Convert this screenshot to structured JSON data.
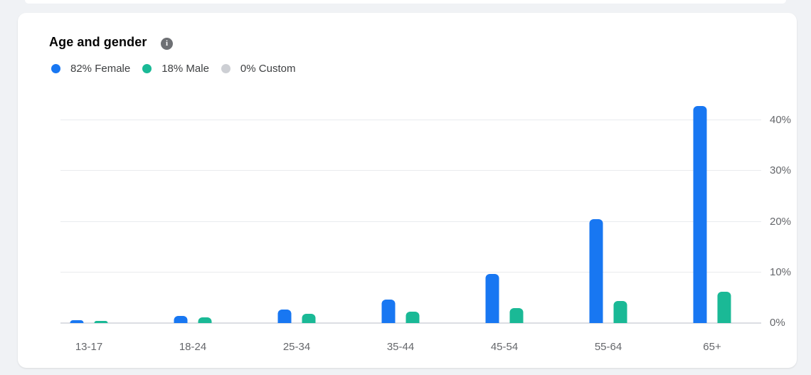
{
  "card": {
    "title": "Age and gender"
  },
  "legend": {
    "items": [
      {
        "label": "82% Female",
        "color": "#1877F2"
      },
      {
        "label": "18% Male",
        "color": "#1AB996"
      },
      {
        "label": "0% Custom",
        "color": "#CDCFD4"
      }
    ]
  },
  "chart_data": {
    "type": "bar",
    "title": "Age and gender",
    "categories": [
      "13-17",
      "18-24",
      "25-34",
      "35-44",
      "45-54",
      "55-64",
      "65+"
    ],
    "series": [
      {
        "name": "Female",
        "color": "#1877F2",
        "values": [
          0.5,
          1.4,
          2.7,
          4.6,
          9.7,
          20.5,
          42.8
        ]
      },
      {
        "name": "Male",
        "color": "#1AB996",
        "values": [
          0.4,
          1.1,
          1.8,
          2.3,
          3.0,
          4.4,
          6.2
        ]
      },
      {
        "name": "Custom",
        "color": "#CDCFD4",
        "values": [
          0,
          0,
          0,
          0,
          0,
          0,
          0
        ]
      }
    ],
    "xlabel": "",
    "ylabel": "",
    "ylim": [
      0,
      40
    ],
    "yticks": [
      0,
      10,
      20,
      30,
      40
    ],
    "ytick_labels": [
      "0%",
      "10%",
      "20%",
      "30%",
      "40%"
    ],
    "grid": "horizontal",
    "legend_position": "top-left",
    "y_axis_side": "right"
  },
  "colors": {
    "page_bg": "#F0F2F5",
    "card_bg": "#FFFFFF",
    "gridline": "#E9EBEE",
    "baseline": "#DCDEE3",
    "axis_text": "#65676B",
    "title_text": "#050505",
    "legend_text": "#3E4042",
    "info_icon_bg": "#6E7074"
  }
}
